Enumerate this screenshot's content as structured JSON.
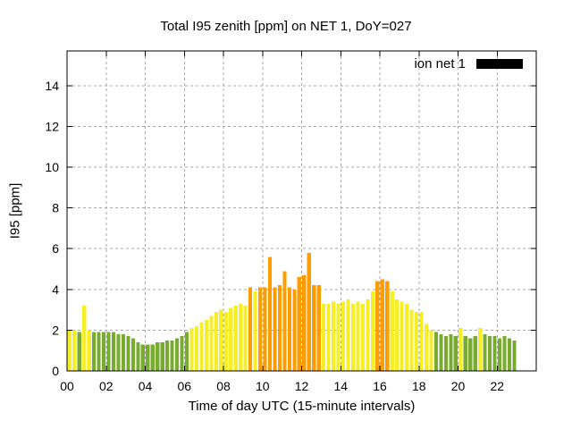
{
  "title": "Total I95 zenith [ppm] on NET 1, DoY=027",
  "legend": {
    "label": "ion net 1",
    "swatch_color": "#000000"
  },
  "chart_data": {
    "type": "bar",
    "title": "Total I95 zenith [ppm] on NET 1, DoY=027",
    "xlabel": "Time of day UTC (15-minute intervals)",
    "ylabel": "I95 [ppm]",
    "series_name": "ion net 1",
    "interval_minutes": 15,
    "xlim_hours": [
      0,
      24
    ],
    "ylim": [
      0,
      15.7
    ],
    "x_tick_hours": [
      0,
      2,
      4,
      6,
      8,
      10,
      12,
      14,
      16,
      18,
      20,
      22
    ],
    "x_ticks": [
      "00",
      "02",
      "04",
      "06",
      "08",
      "10",
      "12",
      "14",
      "16",
      "18",
      "20",
      "22"
    ],
    "y_ticks": [
      0,
      2,
      4,
      6,
      8,
      10,
      12,
      14
    ],
    "grid": true,
    "legend_position": "top-right",
    "colors": {
      "low": "#77ac30",
      "mid": "#f6ef25",
      "high": "#ff9c00"
    },
    "thresholds": {
      "mid": 2.0,
      "high": 4.0
    },
    "times": [
      "00:00",
      "00:15",
      "00:30",
      "00:45",
      "01:00",
      "01:15",
      "01:30",
      "01:45",
      "02:00",
      "02:15",
      "02:30",
      "02:45",
      "03:00",
      "03:15",
      "03:30",
      "03:45",
      "04:00",
      "04:15",
      "04:30",
      "04:45",
      "05:00",
      "05:15",
      "05:30",
      "05:45",
      "06:00",
      "06:15",
      "06:30",
      "06:45",
      "07:00",
      "07:15",
      "07:30",
      "07:45",
      "08:00",
      "08:15",
      "08:30",
      "08:45",
      "09:00",
      "09:15",
      "09:30",
      "09:45",
      "10:00",
      "10:15",
      "10:30",
      "10:45",
      "11:00",
      "11:15",
      "11:30",
      "11:45",
      "12:00",
      "12:15",
      "12:30",
      "12:45",
      "13:00",
      "13:15",
      "13:30",
      "13:45",
      "14:00",
      "14:15",
      "14:30",
      "14:45",
      "15:00",
      "15:15",
      "15:30",
      "15:45",
      "16:00",
      "16:15",
      "16:30",
      "16:45",
      "17:00",
      "17:15",
      "17:30",
      "17:45",
      "18:00",
      "18:15",
      "18:30",
      "18:45",
      "19:00",
      "19:15",
      "19:30",
      "19:45",
      "20:00",
      "20:15",
      "20:30",
      "20:45",
      "21:00",
      "21:15",
      "21:30",
      "21:45",
      "22:00",
      "22:15",
      "22:30",
      "22:45"
    ],
    "values": [
      2.0,
      2.0,
      1.9,
      3.2,
      2.0,
      1.9,
      1.9,
      1.9,
      1.9,
      1.9,
      1.8,
      1.8,
      1.7,
      1.6,
      1.4,
      1.3,
      1.3,
      1.3,
      1.4,
      1.4,
      1.5,
      1.5,
      1.6,
      1.7,
      1.9,
      2.1,
      2.2,
      2.4,
      2.5,
      2.7,
      2.9,
      3.0,
      2.9,
      3.1,
      3.2,
      3.3,
      3.2,
      4.1,
      3.9,
      4.1,
      4.1,
      5.6,
      4.1,
      4.2,
      4.9,
      4.1,
      4.0,
      4.6,
      4.7,
      5.8,
      4.2,
      4.2,
      3.3,
      3.3,
      3.4,
      3.3,
      3.4,
      3.5,
      3.3,
      3.4,
      3.3,
      3.5,
      3.9,
      4.4,
      4.5,
      4.4,
      3.9,
      3.5,
      3.4,
      3.3,
      3.0,
      2.9,
      2.9,
      2.3,
      2.0,
      1.9,
      1.8,
      1.7,
      1.8,
      1.7,
      2.1,
      1.7,
      1.6,
      1.7,
      2.1,
      1.8,
      1.7,
      1.7,
      1.6,
      1.7,
      1.6,
      1.5
    ]
  }
}
